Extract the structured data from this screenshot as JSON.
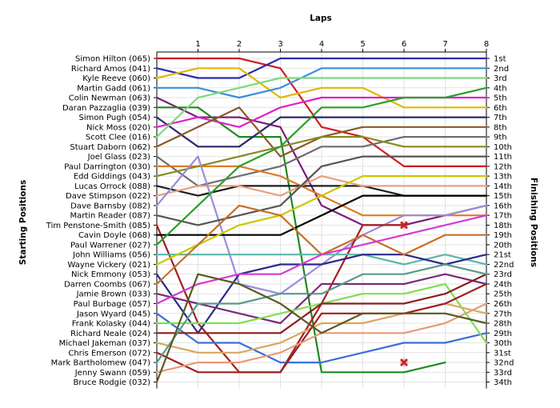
{
  "chart_data": {
    "type": "line",
    "title": "",
    "xlabel": "Laps",
    "ylabel_left": "Starting Positions",
    "ylabel_right": "Finishing Positions",
    "x": [
      0,
      1,
      2,
      3,
      4,
      5,
      6,
      7,
      8
    ],
    "x_tick_labels": [
      "1",
      "2",
      "3",
      "4",
      "5",
      "6",
      "7",
      "8"
    ],
    "ylim": [
      1,
      34
    ],
    "grid": true,
    "starting_order": [
      "Simon Hilton (065)",
      "Richard Amos (041)",
      "Kyle Reeve (060)",
      "Martin Gadd (061)",
      "Colin Newman (063)",
      "Daran Pazzaglia (039)",
      "Simon Pugh (054)",
      "Nick Moss (020)",
      "Scott Clee (016)",
      "Stuart Daborn (062)",
      "Joel Glass (023)",
      "Paul Darrington (030)",
      "Edd Giddings (043)",
      "Lucas Orrock (088)",
      "Dave Stimpson (022)",
      "Dave Barnsby (082)",
      "Martin Reader (087)",
      "Tim Penstone-Smith (085)",
      "Cavin Doyle (068)",
      "Paul Warrener (027)",
      "John Williams (056)",
      "Wayne Vickery (021)",
      "Nick Emmony (053)",
      "Darren Coombs (067)",
      "Jamie Brown (033)",
      "Paul Burbage (057)",
      "Jason Wyard (045)",
      "Frank Kolasky (044)",
      "Richard Neale (024)",
      "Michael Jakeman (037)",
      "Chris Emerson (072)",
      "Mark Bartholomew (047)",
      "Jenny Swann (059)",
      "Bruce Rodgie (032)"
    ],
    "finishing_labels": [
      "1st",
      "2nd",
      "3rd",
      "4th",
      "5th",
      "6th",
      "7th",
      "8th",
      "9th",
      "10th",
      "11th",
      "12th",
      "13th",
      "14th",
      "15th",
      "16th",
      "17th",
      "18th",
      "19th",
      "20th",
      "21st",
      "22nd",
      "23rd",
      "24th",
      "25th",
      "26th",
      "27th",
      "28th",
      "29th",
      "30th",
      "31st",
      "32nd",
      "33rd",
      "34th"
    ],
    "series": [
      {
        "color": "#cc1f1f",
        "values": [
          1,
          1,
          1,
          2,
          8,
          9,
          12,
          12,
          12
        ]
      },
      {
        "color": "#2b2bb0",
        "values": [
          2,
          3,
          3,
          1,
          1,
          1,
          1,
          1,
          1
        ]
      },
      {
        "color": "#e0b800",
        "values": [
          3,
          2,
          2,
          5,
          4,
          4,
          6,
          6,
          6
        ]
      },
      {
        "color": "#3b8fd8",
        "values": [
          4,
          4,
          5,
          4,
          2,
          2,
          2,
          2,
          2
        ]
      },
      {
        "color": "#7a1f7a",
        "values": [
          5,
          7,
          7,
          8,
          16,
          18,
          18,
          17,
          16
        ]
      },
      {
        "color": "#1f8a1f",
        "values": [
          6,
          6,
          9,
          9,
          33,
          33,
          33,
          32,
          null
        ]
      },
      {
        "color": "#2a2a6a",
        "values": [
          7,
          10,
          10,
          7,
          7,
          7,
          7,
          7,
          7
        ]
      },
      {
        "color": "#e020c8",
        "values": [
          8,
          7,
          8,
          6,
          5,
          5,
          5,
          5,
          5
        ]
      },
      {
        "color": "#7fd87f",
        "values": [
          9,
          5,
          4,
          3,
          3,
          3,
          3,
          3,
          3
        ]
      },
      {
        "color": "#8a5a2a",
        "values": [
          10,
          8,
          6,
          11,
          9,
          8,
          8,
          8,
          8
        ]
      },
      {
        "color": "#6e6e6e",
        "values": [
          11,
          14,
          13,
          12,
          10,
          10,
          9,
          9,
          9
        ]
      },
      {
        "color": "#e07a2a",
        "values": [
          12,
          12,
          12,
          13,
          15,
          17,
          17,
          17,
          17
        ]
      },
      {
        "color": "#888820",
        "values": [
          13,
          12,
          11,
          10,
          9,
          9,
          10,
          10,
          10
        ]
      },
      {
        "color": "#1f1f1f",
        "values": [
          14,
          15,
          14,
          14,
          14,
          14,
          15,
          15,
          15
        ]
      },
      {
        "color": "#e8a080",
        "values": [
          15,
          14,
          14,
          15,
          13,
          14,
          14,
          14,
          14
        ]
      },
      {
        "color": "#9a8cdc",
        "values": [
          16,
          11,
          24,
          25,
          22,
          19,
          17,
          17,
          16
        ]
      },
      {
        "color": "#555555",
        "values": [
          17,
          18,
          17,
          16,
          12,
          11,
          11,
          11,
          11
        ]
      },
      {
        "color": "#a32020",
        "values": [
          18,
          28,
          33,
          33,
          26,
          18,
          18,
          null,
          null
        ]
      },
      {
        "color": "#000000",
        "values": [
          19,
          19,
          19,
          19,
          17,
          15,
          15,
          15,
          15
        ]
      },
      {
        "color": "#2aa02a",
        "values": [
          20,
          16,
          12,
          10,
          6,
          6,
          5,
          5,
          4
        ]
      },
      {
        "color": "#5ab8a8",
        "values": [
          21,
          21,
          21,
          21,
          21,
          21,
          22,
          21,
          22
        ]
      },
      {
        "color": "#c8c800",
        "values": [
          22,
          20,
          18,
          17,
          15,
          13,
          13,
          13,
          13
        ]
      },
      {
        "color": "#2a2a8a",
        "values": [
          23,
          29,
          23,
          22,
          22,
          21,
          21,
          22,
          21
        ]
      },
      {
        "color": "#c86e2a",
        "values": [
          24,
          20,
          16,
          17,
          21,
          19,
          21,
          19,
          19
        ]
      },
      {
        "color": "#7a2a7a",
        "values": [
          25,
          26,
          27,
          28,
          24,
          24,
          24,
          23,
          24
        ]
      },
      {
        "color": "#d43ad4",
        "values": [
          26,
          24,
          23,
          23,
          21,
          20,
          19,
          18,
          17
        ]
      },
      {
        "color": "#3b6fd8",
        "values": [
          27,
          30,
          30,
          32,
          32,
          31,
          30,
          30,
          29
        ]
      },
      {
        "color": "#7fe050",
        "values": [
          28,
          28,
          28,
          27,
          26,
          25,
          25,
          24,
          30
        ]
      },
      {
        "color": "#8a1f1f",
        "values": [
          29,
          29,
          29,
          29,
          26,
          26,
          26,
          25,
          23
        ]
      },
      {
        "color": "#d8a860",
        "values": [
          30,
          31,
          31,
          30,
          28,
          28,
          27,
          26,
          27
        ]
      },
      {
        "color": "#a02020",
        "values": [
          31,
          33,
          33,
          33,
          27,
          27,
          27,
          26,
          24
        ]
      },
      {
        "color": "#5a9a8a",
        "values": [
          32,
          26,
          26,
          25,
          25,
          23,
          23,
          22,
          23
        ]
      },
      {
        "color": "#e89a7a",
        "values": [
          33,
          32,
          32,
          31,
          29,
          29,
          29,
          28,
          26
        ]
      },
      {
        "color": "#5a5a20",
        "values": [
          34,
          23,
          24,
          26,
          29,
          27,
          27,
          27,
          28
        ]
      }
    ],
    "retired_markers": [
      {
        "x": 6,
        "y": 18,
        "color": "#cc1f1f"
      },
      {
        "x": 6,
        "y": 32,
        "color": "#cc1f1f"
      }
    ]
  }
}
